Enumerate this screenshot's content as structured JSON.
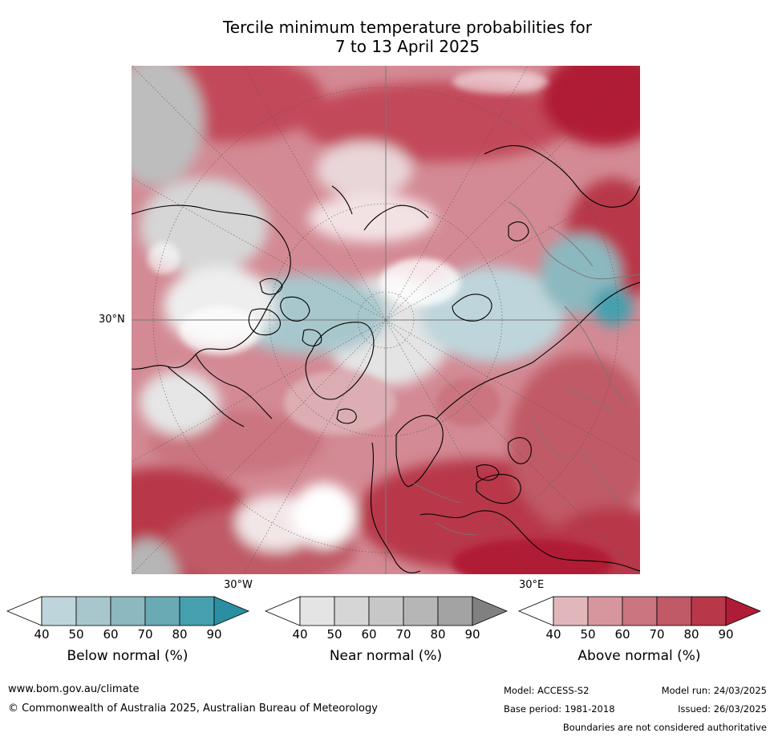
{
  "title": {
    "line1": "Tercile minimum temperature probabilities for",
    "line2": "7 to 13 April 2025"
  },
  "map": {
    "projection": "north-polar",
    "lat_label": "30°N",
    "lon_labels": [
      "30°W",
      "30°E"
    ],
    "region": "Northern hemisphere"
  },
  "legends": [
    {
      "title": "Below normal (%)",
      "ticks": [
        "40",
        "50",
        "60",
        "70",
        "80",
        "90"
      ],
      "colors": [
        "#ffffff",
        "#bed5db",
        "#a7c7cd",
        "#8cb8bf",
        "#6aaab5",
        "#46a0ae",
        "#2a8fa0"
      ]
    },
    {
      "title": "Near normal (%)",
      "ticks": [
        "40",
        "50",
        "60",
        "70",
        "80",
        "90"
      ],
      "colors": [
        "#ffffff",
        "#e4e4e4",
        "#d6d6d6",
        "#c7c7c7",
        "#b6b6b6",
        "#a3a3a3",
        "#808080"
      ]
    },
    {
      "title": "Above normal (%)",
      "ticks": [
        "40",
        "50",
        "60",
        "70",
        "80",
        "90"
      ],
      "colors": [
        "#ffffff",
        "#e2b7bc",
        "#d7969e",
        "#ca7580",
        "#c05a66",
        "#b8384a",
        "#b01c36"
      ]
    }
  ],
  "footer": {
    "website": "www.bom.gov.au/climate",
    "copyright": "© Commonwealth of Australia 2025, Australian Bureau of Meteorology",
    "model": "Model: ACCESS-S2",
    "base_period": "Base period: 1981-2018",
    "model_run": "Model run: 24/03/2025",
    "issued": "Issued: 26/03/2025",
    "disclaimer": "Boundaries are not considered authoritative"
  }
}
